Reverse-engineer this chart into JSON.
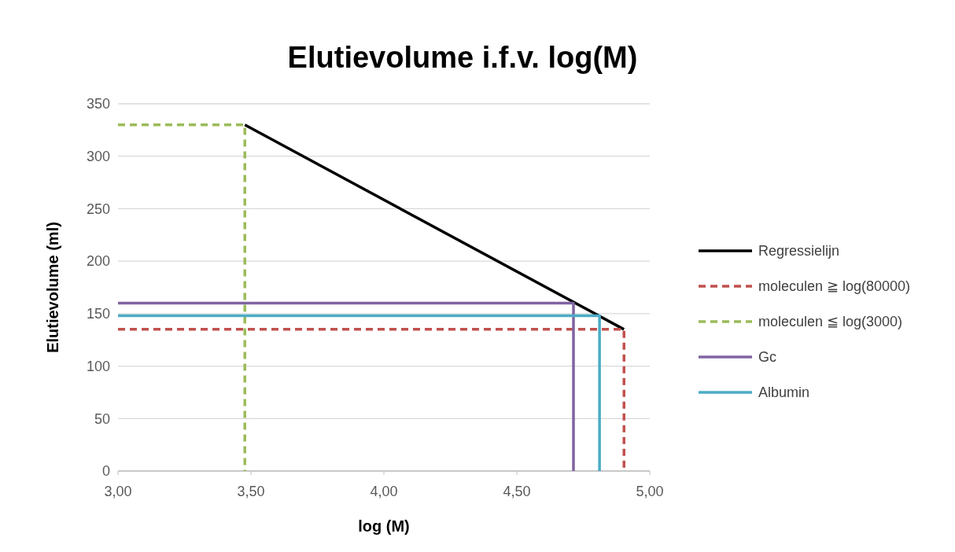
{
  "chart_data": {
    "type": "line",
    "title": "Elutievolume i.f.v. log(M)",
    "xlabel": "log (M)",
    "ylabel": "Elutievolume (ml)",
    "series": [
      {
        "name": "Regressielijn",
        "color": "#000000",
        "x": [
          3.477,
          4.903
        ],
        "values": [
          330,
          135
        ],
        "line_style": "solid"
      },
      {
        "name": "moleculen ≧ log(80000)",
        "color": "#c0504d",
        "x": [
          3,
          4.903,
          4.903
        ],
        "values": [
          135,
          135,
          0
        ],
        "line_style": "dashed"
      },
      {
        "name": "moleculen ≦ log(3000)",
        "color": "#9bbb59",
        "x": [
          3,
          3.477,
          3.477
        ],
        "values": [
          330,
          330,
          0
        ],
        "line_style": "dashed"
      },
      {
        "name": "Gc",
        "color": "#8064a2",
        "x": [
          3,
          4.713,
          4.713
        ],
        "values": [
          160,
          160,
          0
        ],
        "line_style": "solid"
      },
      {
        "name": "Albumin",
        "color": "#4bacc6",
        "x": [
          3,
          4.811,
          4.811
        ],
        "values": [
          148,
          148,
          0
        ],
        "line_style": "solid"
      }
    ],
    "xlim": [
      3,
      5
    ],
    "xticks": [
      {
        "value": 3,
        "label": "3,00"
      },
      {
        "value": 3.5,
        "label": "3,50"
      },
      {
        "value": 4,
        "label": "4,00"
      },
      {
        "value": 4.5,
        "label": "4,50"
      },
      {
        "value": 5,
        "label": "5,00"
      }
    ],
    "ylim": [
      0,
      350
    ],
    "yticks": [
      0,
      50,
      100,
      150,
      200,
      250,
      300,
      350
    ],
    "grid": "y",
    "legend": "right",
    "marker": "none"
  }
}
